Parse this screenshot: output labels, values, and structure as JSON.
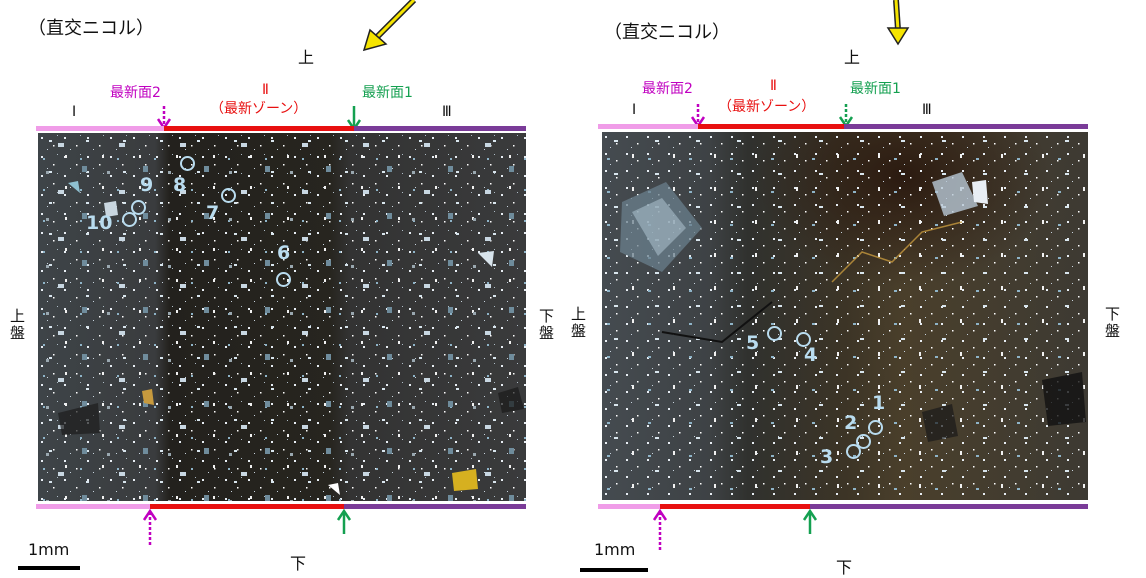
{
  "colors": {
    "zone1": "#f09ce8",
    "zone2": "#e81010",
    "zone3": "#7a3b98",
    "surface2": "#c000c0",
    "surface1": "#14a050",
    "label_circle": "#b9dcef"
  },
  "left": {
    "nicol": "（直交ニコル）",
    "top": "上",
    "bottom": "下",
    "upper_plate": "上盤",
    "lower_plate": "下盤",
    "surface2": "最新面2",
    "surface1": "最新面1",
    "zone1": "Ⅰ",
    "zone2": "Ⅱ",
    "zone2_sub": "（最新ゾーン）",
    "zone3": "Ⅲ",
    "scale": "1mm",
    "points": [
      "10",
      "9",
      "8",
      "7",
      "6"
    ]
  },
  "right": {
    "nicol": "（直交ニコル）",
    "top": "上",
    "bottom": "下",
    "upper_plate": "上盤",
    "lower_plate": "下盤",
    "surface2": "最新面2",
    "surface1": "最新面1",
    "zone1": "Ⅰ",
    "zone2": "Ⅱ",
    "zone2_sub": "（最新ゾーン）",
    "zone3": "Ⅲ",
    "scale": "1mm",
    "points": [
      "5",
      "4",
      "1",
      "2",
      "3"
    ]
  }
}
